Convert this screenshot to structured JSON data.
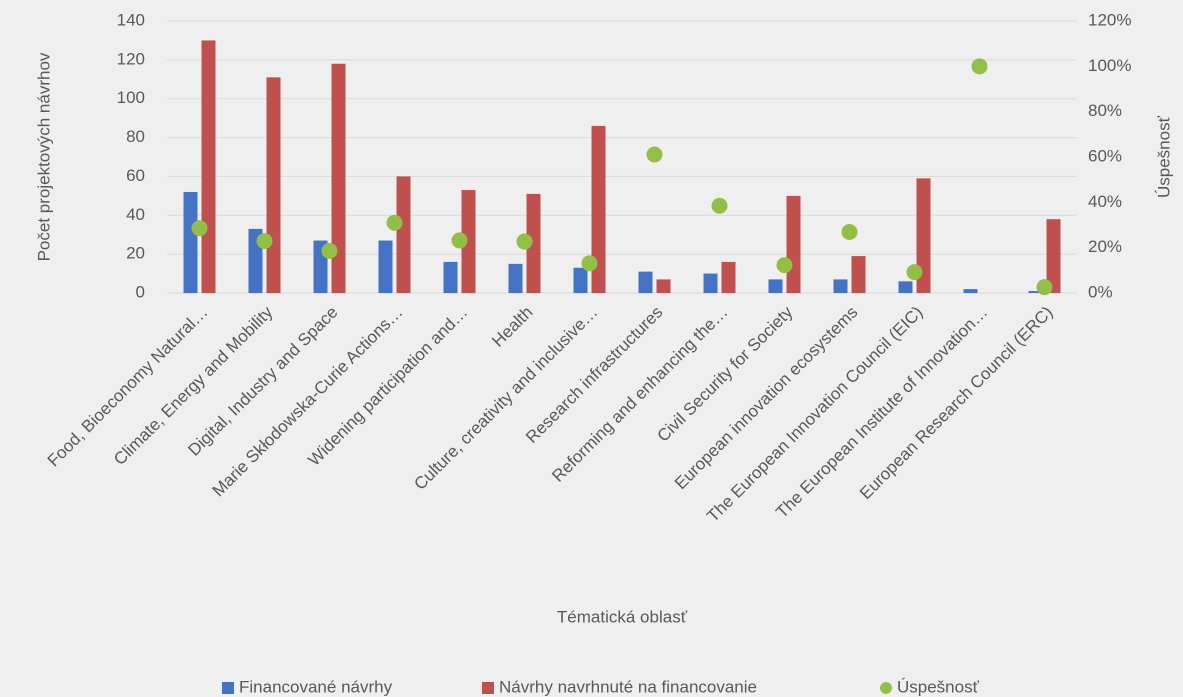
{
  "chart_data": {
    "type": "bar-combo",
    "x_label": "Tématická oblasť",
    "y_label": "Počet projektových návrhov",
    "y2_label": "Úspešnosť",
    "categories": [
      "Food, Bioeconomy Natural…",
      "Climate, Energy and Mobility",
      "Digital, Industry and Space",
      "Marie Skłodowska-Curie Actions…",
      "Widening participation and…",
      "Health",
      "Culture, creativity and inclusive…",
      "Research infrastructures",
      "Reforming and enhancing the…",
      "Civil Security for Society",
      "European innovation ecosystems",
      "The European Innovation Council (EIC)",
      "The European Institute of Innovation…",
      "European Research Council (ERC)"
    ],
    "series": [
      {
        "name": "Financované návrhy",
        "color": "#4472c4",
        "values": [
          52,
          33,
          27,
          27,
          16,
          15,
          13,
          11,
          10,
          7,
          7,
          6,
          2,
          1
        ]
      },
      {
        "name": "Návrhy navrhnuté na financovanie",
        "color": "#c0504d",
        "values": [
          130,
          111,
          118,
          60,
          53,
          51,
          86,
          7,
          16,
          50,
          19,
          59,
          0,
          38
        ]
      },
      {
        "name": "Úspešnosť",
        "color": "#92c047",
        "axis": "y2",
        "values": [
          28.6,
          22.9,
          18.6,
          31,
          23.2,
          22.7,
          13.1,
          61.1,
          38.5,
          12.3,
          26.9,
          9.2,
          100,
          2.6
        ]
      }
    ],
    "ylim": [
      0,
      140
    ],
    "yticks": [
      0,
      20,
      40,
      60,
      80,
      100,
      120,
      140
    ],
    "y2lim": [
      0,
      120
    ],
    "y2ticks": [
      {
        "value": 0,
        "label": "0%"
      },
      {
        "value": 20,
        "label": "20%"
      },
      {
        "value": 40,
        "label": "40%"
      },
      {
        "value": 60,
        "label": "60%"
      },
      {
        "value": 80,
        "label": "80%"
      },
      {
        "value": 100,
        "label": "100%"
      },
      {
        "value": 120,
        "label": "120%"
      }
    ],
    "grid": true,
    "legend": "bottom"
  }
}
